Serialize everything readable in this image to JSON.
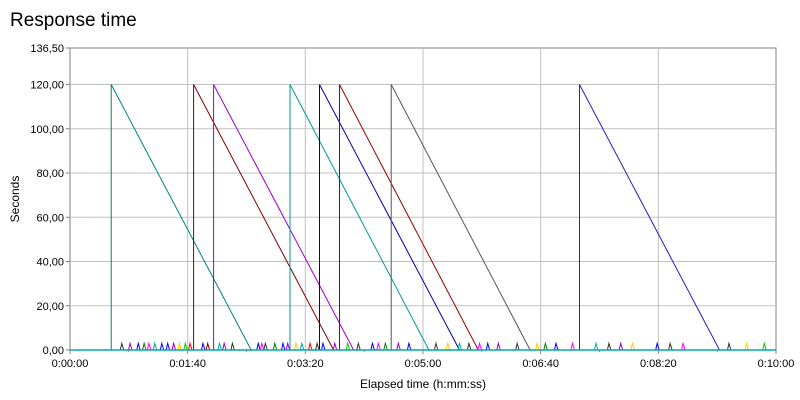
{
  "title": "Response time",
  "chart_data": {
    "type": "line",
    "title": "Response time",
    "xlabel": "Elapsed time (h:mm:ss)",
    "ylabel": "Seconds",
    "xlim": [
      0,
      600
    ],
    "ylim": [
      0,
      136.5
    ],
    "x_ticks": [
      {
        "value": 0,
        "label": "0:00:00"
      },
      {
        "value": 100,
        "label": "0:01:40"
      },
      {
        "value": 200,
        "label": "0:03:20"
      },
      {
        "value": 300,
        "label": "0:05:00"
      },
      {
        "value": 400,
        "label": "0:06:40"
      },
      {
        "value": 500,
        "label": "0:08:20"
      },
      {
        "value": 600,
        "label": "0:10:00"
      }
    ],
    "x_minor_ticks": [
      50,
      150,
      250,
      350,
      450,
      550
    ],
    "y_ticks": [
      {
        "value": 0,
        "label": "0,00"
      },
      {
        "value": 20,
        "label": "20,00"
      },
      {
        "value": 40,
        "label": "40,00"
      },
      {
        "value": 60,
        "label": "60,00"
      },
      {
        "value": 80,
        "label": "80,00"
      },
      {
        "value": 100,
        "label": "100,00"
      },
      {
        "value": 120,
        "label": "120,00"
      },
      {
        "value": 136.5,
        "label": "136,50"
      }
    ],
    "grid": true,
    "legend": "none",
    "series": [
      {
        "color": "#008080",
        "points": [
          [
            0,
            0
          ],
          [
            35,
            0
          ],
          [
            35,
            120
          ],
          [
            154,
            0
          ],
          [
            600,
            0
          ]
        ]
      },
      {
        "color": "#800000",
        "points": [
          [
            0,
            0
          ],
          [
            105,
            0
          ],
          [
            105,
            120
          ],
          [
            224,
            0
          ],
          [
            600,
            0
          ]
        ]
      },
      {
        "color": "#9900cc",
        "points": [
          [
            0,
            0
          ],
          [
            122,
            0
          ],
          [
            122,
            120
          ],
          [
            241,
            0
          ],
          [
            600,
            0
          ]
        ]
      },
      {
        "color": "#009999",
        "points": [
          [
            0,
            0
          ],
          [
            187,
            0
          ],
          [
            187,
            120
          ],
          [
            305,
            0
          ],
          [
            600,
            0
          ]
        ]
      },
      {
        "color": "#0000aa",
        "points": [
          [
            0,
            0
          ],
          [
            212,
            0
          ],
          [
            212,
            120
          ],
          [
            331,
            0
          ],
          [
            600,
            0
          ]
        ]
      },
      {
        "color": "#990000",
        "points": [
          [
            0,
            0
          ],
          [
            229,
            0
          ],
          [
            229,
            120
          ],
          [
            347,
            0
          ],
          [
            600,
            0
          ]
        ]
      },
      {
        "color": "#555555",
        "points": [
          [
            0,
            0
          ],
          [
            273,
            0
          ],
          [
            273,
            120
          ],
          [
            391,
            0
          ],
          [
            600,
            0
          ]
        ]
      },
      {
        "color": "#2222bb",
        "points": [
          [
            0,
            0
          ],
          [
            433,
            0
          ],
          [
            433,
            120
          ],
          [
            552,
            0
          ],
          [
            600,
            0
          ]
        ]
      }
    ],
    "spikes": [
      {
        "x": 44,
        "y": 3,
        "color": "#333333"
      },
      {
        "x": 51,
        "y": 3,
        "color": "#9900cc"
      },
      {
        "x": 58,
        "y": 3,
        "color": "#0000ff"
      },
      {
        "x": 63,
        "y": 3,
        "color": "#008000"
      },
      {
        "x": 67,
        "y": 3,
        "color": "#ff00ff"
      },
      {
        "x": 72,
        "y": 3,
        "color": "#00aaaa"
      },
      {
        "x": 78,
        "y": 3,
        "color": "#0000ff"
      },
      {
        "x": 83,
        "y": 3,
        "color": "#0000ff"
      },
      {
        "x": 88,
        "y": 3,
        "color": "#9900cc"
      },
      {
        "x": 93,
        "y": 3,
        "color": "#ffcc00"
      },
      {
        "x": 98,
        "y": 3,
        "color": "#00cc00"
      },
      {
        "x": 102,
        "y": 3,
        "color": "#ff0000"
      },
      {
        "x": 113,
        "y": 3,
        "color": "#0000ff"
      },
      {
        "x": 117,
        "y": 3,
        "color": "#800000"
      },
      {
        "x": 127,
        "y": 3,
        "color": "#00aaaa"
      },
      {
        "x": 131,
        "y": 3,
        "color": "#9900cc"
      },
      {
        "x": 138,
        "y": 3,
        "color": "#333333"
      },
      {
        "x": 160,
        "y": 3,
        "color": "#0000ff"
      },
      {
        "x": 163,
        "y": 3,
        "color": "#ff00ff"
      },
      {
        "x": 166,
        "y": 3,
        "color": "#333333"
      },
      {
        "x": 174,
        "y": 3,
        "color": "#008000"
      },
      {
        "x": 181,
        "y": 3,
        "color": "#0000ff"
      },
      {
        "x": 185,
        "y": 3,
        "color": "#9900cc"
      },
      {
        "x": 192,
        "y": 3,
        "color": "#ffcc00"
      },
      {
        "x": 197,
        "y": 3,
        "color": "#00aaaa"
      },
      {
        "x": 204,
        "y": 3,
        "color": "#ff0000"
      },
      {
        "x": 210,
        "y": 3,
        "color": "#333333"
      },
      {
        "x": 215,
        "y": 3,
        "color": "#0000ff"
      },
      {
        "x": 225,
        "y": 3,
        "color": "#9900cc"
      },
      {
        "x": 236,
        "y": 3,
        "color": "#00cc00"
      },
      {
        "x": 245,
        "y": 3,
        "color": "#333333"
      },
      {
        "x": 257,
        "y": 3,
        "color": "#0000ff"
      },
      {
        "x": 262,
        "y": 3,
        "color": "#ff00ff"
      },
      {
        "x": 268,
        "y": 3,
        "color": "#008000"
      },
      {
        "x": 279,
        "y": 3,
        "color": "#9900cc"
      },
      {
        "x": 288,
        "y": 3,
        "color": "#0000ff"
      },
      {
        "x": 311,
        "y": 3,
        "color": "#333333"
      },
      {
        "x": 321,
        "y": 3,
        "color": "#ffcc00"
      },
      {
        "x": 331,
        "y": 3,
        "color": "#00aaaa"
      },
      {
        "x": 339,
        "y": 3,
        "color": "#333333"
      },
      {
        "x": 348,
        "y": 3,
        "color": "#ff00ff"
      },
      {
        "x": 355,
        "y": 3,
        "color": "#0000ff"
      },
      {
        "x": 364,
        "y": 3,
        "color": "#9900cc"
      },
      {
        "x": 380,
        "y": 3,
        "color": "#333333"
      },
      {
        "x": 397,
        "y": 3,
        "color": "#ffcc00"
      },
      {
        "x": 404,
        "y": 3,
        "color": "#008000"
      },
      {
        "x": 413,
        "y": 3,
        "color": "#0000ff"
      },
      {
        "x": 427,
        "y": 3,
        "color": "#ff00ff"
      },
      {
        "x": 447,
        "y": 3,
        "color": "#00aaaa"
      },
      {
        "x": 458,
        "y": 3,
        "color": "#333333"
      },
      {
        "x": 468,
        "y": 3,
        "color": "#9900cc"
      },
      {
        "x": 478,
        "y": 3,
        "color": "#ffcc00"
      },
      {
        "x": 499,
        "y": 3,
        "color": "#0000ff"
      },
      {
        "x": 510,
        "y": 3,
        "color": "#333333"
      },
      {
        "x": 521,
        "y": 3,
        "color": "#ff00ff"
      },
      {
        "x": 560,
        "y": 3,
        "color": "#333333"
      },
      {
        "x": 575,
        "y": 3,
        "color": "#ffcc00"
      },
      {
        "x": 590,
        "y": 3,
        "color": "#00cc00"
      }
    ]
  }
}
